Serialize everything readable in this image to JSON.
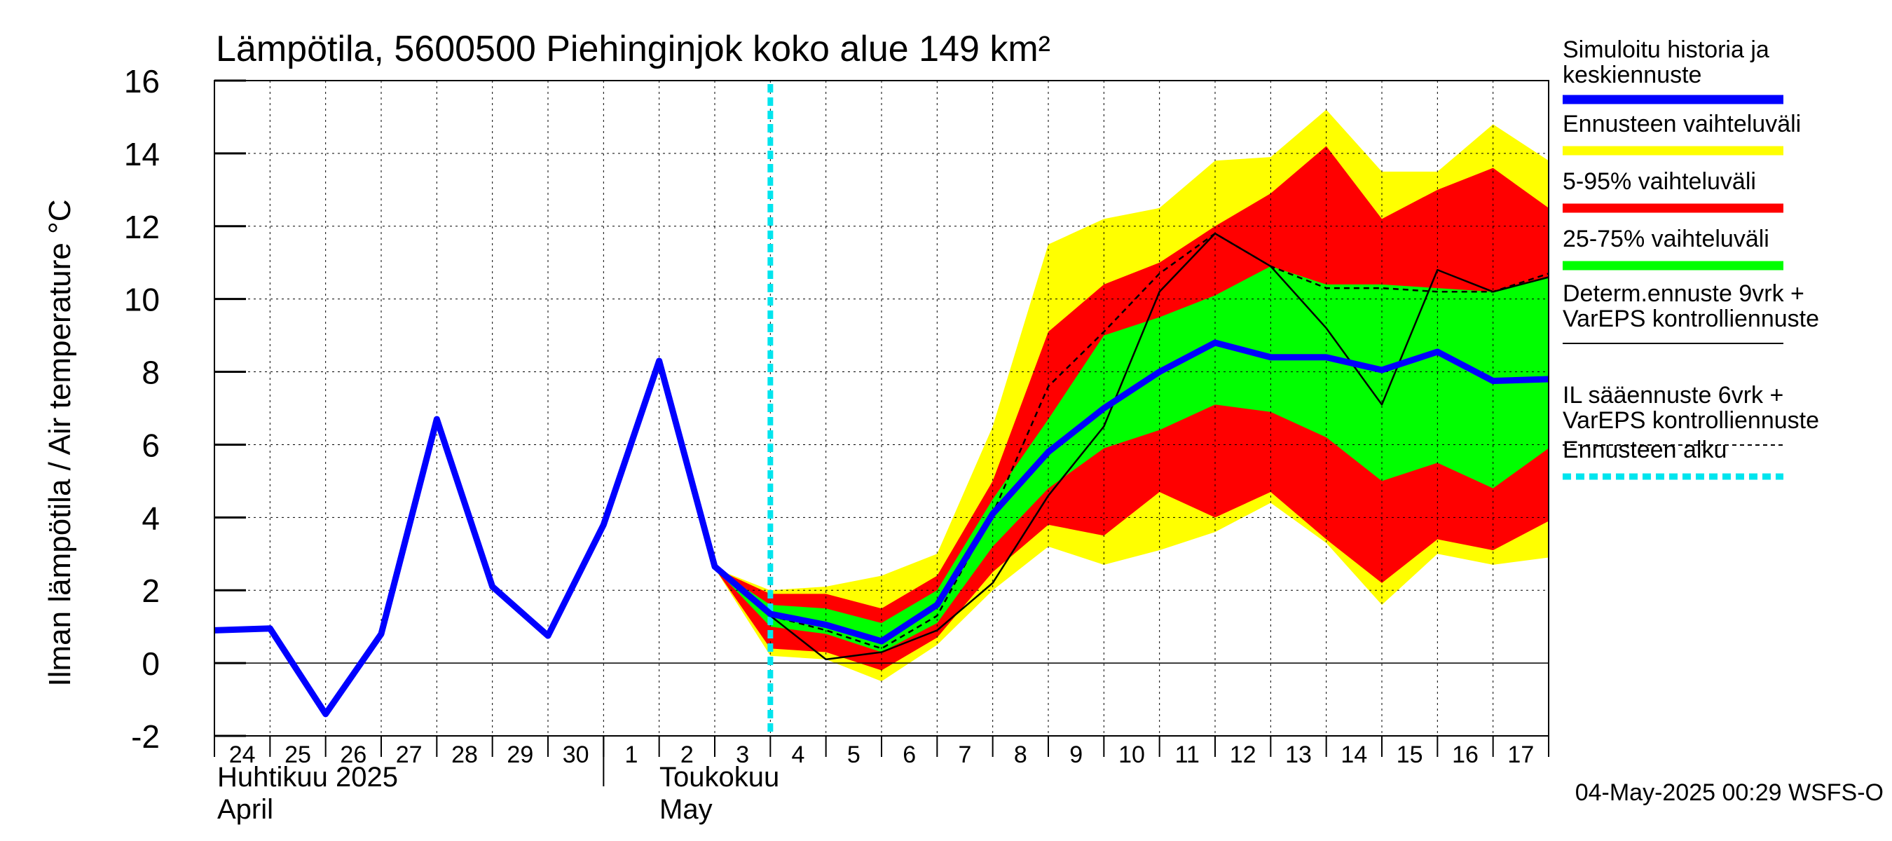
{
  "chart_data": {
    "type": "area",
    "title": "Lämpötila, 5600500 Piehinginjok koko alue 149 km²",
    "ylabel": "Ilman lämpötila / Air temperature   °C",
    "ylim": [
      -2,
      16
    ],
    "yticks": [
      "-2",
      "0",
      "2",
      "4",
      "6",
      "8",
      "10",
      "12",
      "14",
      "16"
    ],
    "xlim": [
      0,
      24
    ],
    "day_labels": [
      "24",
      "25",
      "26",
      "27",
      "28",
      "29",
      "30",
      "1",
      "2",
      "3",
      "4",
      "5",
      "6",
      "7",
      "8",
      "9",
      "10",
      "11",
      "12",
      "13",
      "14",
      "15",
      "16",
      "17"
    ],
    "month_labels": {
      "april_fi": "Huhtikuu  2025",
      "april_en": "April",
      "may_fi": "Toukokuu",
      "may_en": "May"
    },
    "forecast_start_x": 10,
    "band_x": [
      9,
      10,
      11,
      12,
      13,
      14,
      15,
      16,
      17,
      18,
      19,
      20,
      21,
      22,
      23,
      24
    ],
    "series": [
      {
        "name": "Ennusteen vaihteluväli",
        "color": "#ffff00",
        "upper": [
          2.6,
          2.0,
          2.1,
          2.4,
          3.0,
          6.5,
          11.5,
          12.2,
          12.5,
          13.8,
          13.9,
          15.2,
          13.5,
          13.5,
          14.8,
          13.8
        ],
        "lower": [
          2.6,
          0.2,
          0.1,
          -0.5,
          0.5,
          2.0,
          3.2,
          2.7,
          3.1,
          3.6,
          4.4,
          3.3,
          1.6,
          3.0,
          2.7,
          2.9
        ]
      },
      {
        "name": "5-95% vaihteluväli",
        "color": "#ff0000",
        "upper": [
          2.6,
          1.9,
          1.9,
          1.5,
          2.4,
          5.0,
          9.1,
          10.4,
          11.0,
          12.0,
          12.9,
          14.2,
          12.2,
          13.0,
          13.6,
          12.5
        ],
        "lower": [
          2.6,
          0.4,
          0.3,
          -0.2,
          0.7,
          2.5,
          3.8,
          3.5,
          4.7,
          4.0,
          4.7,
          3.4,
          2.2,
          3.4,
          3.1,
          3.9
        ]
      },
      {
        "name": "25-75% vaihteluväli",
        "color": "#00ff00",
        "upper": [
          2.6,
          1.6,
          1.5,
          1.1,
          2.0,
          4.5,
          6.7,
          9.0,
          9.5,
          10.1,
          10.9,
          10.4,
          10.4,
          10.3,
          10.2,
          10.6
        ],
        "lower": [
          2.6,
          1.0,
          0.8,
          0.3,
          1.1,
          3.2,
          4.8,
          5.9,
          6.4,
          7.1,
          6.9,
          6.2,
          5.0,
          5.5,
          4.8,
          5.9
        ]
      }
    ],
    "lines": [
      {
        "name": "Simuloitu historia ja keskiennuste",
        "color": "#0000ff",
        "x": [
          0,
          1,
          2,
          3,
          4,
          5,
          6,
          7,
          8,
          9,
          10,
          11,
          12,
          13,
          14,
          15,
          16,
          17,
          18,
          19,
          20,
          21,
          22,
          23,
          24
        ],
        "y": [
          0.9,
          0.95,
          -1.4,
          0.8,
          6.7,
          2.1,
          0.75,
          3.8,
          8.3,
          2.65,
          1.35,
          1.05,
          0.6,
          1.6,
          4.1,
          5.8,
          7.0,
          8.0,
          8.8,
          8.4,
          8.4,
          8.05,
          8.55,
          7.75,
          7.8
        ]
      },
      {
        "name": "Determ.ennuste 9vrk + VarEPS kontrolliennuste",
        "color": "#000000",
        "x": [
          8,
          9,
          10,
          11,
          12,
          13,
          14,
          15,
          16,
          17,
          18,
          19,
          20,
          21,
          22,
          23,
          24
        ],
        "y": [
          8.3,
          2.65,
          1.3,
          0.1,
          0.3,
          0.9,
          2.2,
          4.6,
          6.5,
          10.2,
          11.8,
          10.9,
          9.2,
          7.1,
          10.8,
          10.2,
          10.6
        ]
      },
      {
        "name": "IL sääennuste 6vrk + VarEPS kontrolliennuste",
        "color": "#000000",
        "dashed": true,
        "x": [
          10,
          11,
          12,
          13,
          14,
          15,
          16,
          17,
          18,
          19,
          20,
          21,
          22,
          23,
          24
        ],
        "y": [
          1.3,
          0.9,
          0.4,
          1.3,
          4.1,
          7.6,
          9.1,
          10.7,
          11.8,
          10.9,
          10.3,
          10.3,
          10.2,
          10.2,
          10.7
        ]
      }
    ],
    "legend": [
      {
        "label_1": "Simuloitu historia ja",
        "label_2": "keskiennuste",
        "color": "#0000ff",
        "style": "thick"
      },
      {
        "label_1": "Ennusteen vaihteluväli",
        "label_2": "",
        "color": "#ffff00",
        "style": "thick"
      },
      {
        "label_1": "5-95% vaihteluväli",
        "label_2": "",
        "color": "#ff0000",
        "style": "thick"
      },
      {
        "label_1": "25-75% vaihteluväli",
        "label_2": "",
        "color": "#00ff00",
        "style": "thick"
      },
      {
        "label_1": "Determ.ennuste 9vrk +",
        "label_2": "VarEPS kontrolliennuste",
        "color": "#000000",
        "style": "thin"
      },
      {
        "label_1": "IL sääennuste 6vrk  +",
        "label_2": "  VarEPS kontrolliennuste",
        "color": "#000000",
        "style": "dashed"
      },
      {
        "label_1": "Ennusteen alku",
        "label_2": "",
        "color": "#00e5ee",
        "style": "dotted"
      }
    ],
    "timestamp": "04-May-2025 00:29 WSFS-O"
  }
}
